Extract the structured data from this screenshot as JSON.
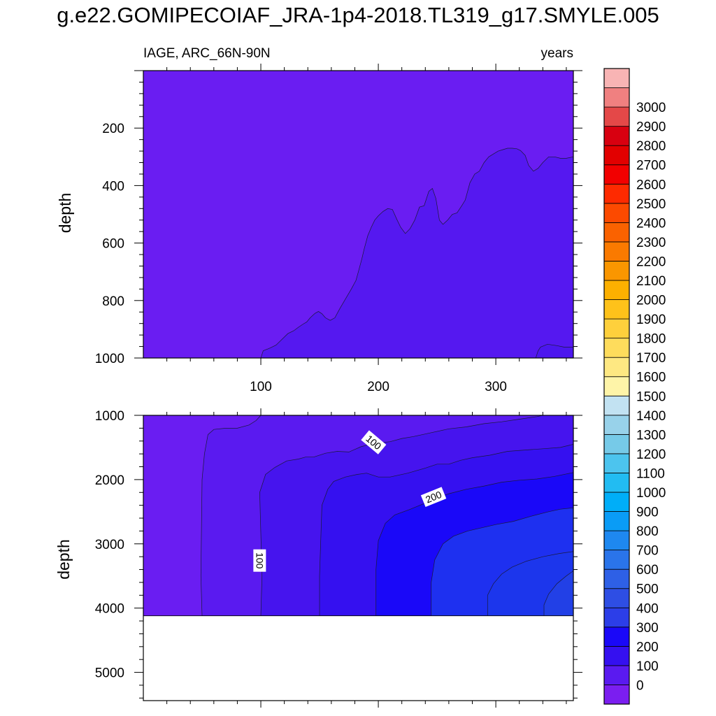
{
  "figure_title": "g.e22.GOMIPECOIAF_JRA-1p4-2018.TL319_g17.SMYLE.005",
  "chart_data": [
    {
      "type": "heatmap",
      "panel": "top",
      "title_left": "IAGE, ARC_66N-90N",
      "title_right": "years",
      "xlabel": "",
      "ylabel": "depth",
      "xlim": [
        0,
        366
      ],
      "ylim": [
        0,
        1000
      ],
      "y_reversed": true,
      "x_ticks": [
        100,
        200,
        300
      ],
      "y_ticks": [
        200,
        400,
        600,
        800,
        1000
      ],
      "contour_lines": [
        0,
        100
      ],
      "contour_labels": [],
      "bands": [
        {
          "level": "0-100",
          "color": "#6a1df2",
          "boundary": [
            [
              0,
              1000
            ],
            [
              0,
              0
            ],
            [
              366,
              0
            ],
            [
              366,
              1000
            ]
          ]
        },
        {
          "level": "100-200",
          "color": "#5518f0",
          "boundary": [
            [
              100,
              1000
            ],
            [
              102,
              975
            ],
            [
              108,
              965
            ],
            [
              113,
              955
            ],
            [
              118,
              935
            ],
            [
              123,
              915
            ],
            [
              128,
              905
            ],
            [
              132,
              893
            ],
            [
              136,
              882
            ],
            [
              139,
              875
            ],
            [
              142,
              860
            ],
            [
              146,
              845
            ],
            [
              149,
              838
            ],
            [
              152,
              846
            ],
            [
              155,
              860
            ],
            [
              159,
              869
            ],
            [
              163,
              860
            ],
            [
              167,
              830
            ],
            [
              172,
              795
            ],
            [
              177,
              760
            ],
            [
              181,
              730
            ],
            [
              183,
              700
            ],
            [
              186,
              655
            ],
            [
              188,
              620
            ],
            [
              191,
              575
            ],
            [
              194,
              545
            ],
            [
              197,
              520
            ],
            [
              200,
              505
            ],
            [
              204,
              490
            ],
            [
              208,
              480
            ],
            [
              212,
              483
            ],
            [
              216,
              520
            ],
            [
              219,
              545
            ],
            [
              223,
              567
            ],
            [
              227,
              550
            ],
            [
              231,
              520
            ],
            [
              235,
              475
            ],
            [
              239,
              470
            ],
            [
              243,
              420
            ],
            [
              246,
              410
            ],
            [
              249,
              445
            ],
            [
              252,
              520
            ],
            [
              255,
              535
            ],
            [
              259,
              520
            ],
            [
              263,
              500
            ],
            [
              267,
              495
            ],
            [
              271,
              470
            ],
            [
              274,
              450
            ],
            [
              278,
              390
            ],
            [
              282,
              360
            ],
            [
              286,
              350
            ],
            [
              290,
              320
            ],
            [
              294,
              300
            ],
            [
              298,
              290
            ],
            [
              302,
              280
            ],
            [
              306,
              275
            ],
            [
              310,
              270
            ],
            [
              314,
              270
            ],
            [
              318,
              272
            ],
            [
              321,
              278
            ],
            [
              325,
              295
            ],
            [
              328,
              330
            ],
            [
              332,
              350
            ],
            [
              336,
              340
            ],
            [
              340,
              320
            ],
            [
              345,
              300
            ],
            [
              350,
              300
            ],
            [
              355,
              305
            ],
            [
              360,
              305
            ],
            [
              366,
              300
            ],
            [
              366,
              1000
            ]
          ]
        },
        {
          "level": "100-200 (deep patch)",
          "color": "#4c16ee",
          "boundary": [
            [
              366,
              1000
            ],
            [
              366,
              962
            ],
            [
              358,
              962
            ],
            [
              352,
              957
            ],
            [
              344,
              952
            ],
            [
              338,
              962
            ],
            [
              336,
              975
            ],
            [
              334,
              1000
            ]
          ]
        }
      ]
    },
    {
      "type": "heatmap",
      "panel": "bottom",
      "title_left": "",
      "title_right": "",
      "xlabel": "",
      "ylabel": "depth",
      "xlim": [
        0,
        366
      ],
      "ylim": [
        1000,
        5440
      ],
      "y_reversed": true,
      "x_ticks": [],
      "y_ticks": [
        1000,
        2000,
        3000,
        4000,
        5000
      ],
      "data_bottom": 4120,
      "contour_lines": [
        0,
        100,
        200,
        300,
        400
      ],
      "contour_labels": [
        {
          "text": "100",
          "x": 196,
          "y": 1420
        },
        {
          "text": "200",
          "x": 247,
          "y": 2270
        },
        {
          "text": "100",
          "x": 99,
          "y": 3260
        }
      ],
      "bands": [
        {
          "level": "0-50",
          "color": "#6a1df2",
          "boundary": [
            [
              0,
              1000
            ],
            [
              366,
              1000
            ],
            [
              366,
              4120
            ],
            [
              0,
              4120
            ]
          ]
        },
        {
          "level": "50-100",
          "color": "#5a1af0",
          "boundary": [
            [
              50,
              4120
            ],
            [
              49,
              3500
            ],
            [
              50,
              2000
            ],
            [
              52,
              1600
            ],
            [
              55,
              1300
            ],
            [
              60,
              1220
            ],
            [
              70,
              1200
            ],
            [
              80,
              1200
            ],
            [
              90,
              1150
            ],
            [
              96,
              1080
            ],
            [
              100,
              1000
            ],
            [
              366,
              1000
            ],
            [
              366,
              4120
            ]
          ]
        },
        {
          "level": "100-150",
          "color": "#4614ee",
          "boundary": [
            [
              100,
              4120
            ],
            [
              101,
              3500
            ],
            [
              99,
              2200
            ],
            [
              104,
              1920
            ],
            [
              112,
              1810
            ],
            [
              122,
              1710
            ],
            [
              132,
              1680
            ],
            [
              138,
              1650
            ],
            [
              145,
              1650
            ],
            [
              155,
              1590
            ],
            [
              165,
              1560
            ],
            [
              175,
              1570
            ],
            [
              185,
              1490
            ],
            [
              195,
              1440
            ],
            [
              210,
              1410
            ],
            [
              220,
              1360
            ],
            [
              230,
              1330
            ],
            [
              245,
              1270
            ],
            [
              260,
              1210
            ],
            [
              275,
              1180
            ],
            [
              290,
              1130
            ],
            [
              305,
              1100
            ],
            [
              320,
              1060
            ],
            [
              335,
              1020
            ],
            [
              340,
              1000
            ],
            [
              366,
              1000
            ],
            [
              366,
              4120
            ]
          ]
        },
        {
          "level": "150-200",
          "color": "#3510f0",
          "boundary": [
            [
              150,
              4120
            ],
            [
              150,
              3500
            ],
            [
              152,
              2400
            ],
            [
              157,
              2150
            ],
            [
              162,
              2030
            ],
            [
              172,
              1960
            ],
            [
              182,
              1920
            ],
            [
              190,
              1900
            ],
            [
              200,
              1960
            ],
            [
              210,
              1960
            ],
            [
              225,
              1900
            ],
            [
              240,
              1820
            ],
            [
              250,
              1760
            ],
            [
              260,
              1760
            ],
            [
              270,
              1700
            ],
            [
              280,
              1660
            ],
            [
              295,
              1620
            ],
            [
              310,
              1560
            ],
            [
              325,
              1540
            ],
            [
              340,
              1520
            ],
            [
              355,
              1500
            ],
            [
              366,
              1450
            ],
            [
              366,
              4120
            ]
          ]
        },
        {
          "level": "200-250",
          "color": "#1a08f8",
          "boundary": [
            [
              198,
              4120
            ],
            [
              198,
              3400
            ],
            [
              200,
              2950
            ],
            [
              206,
              2680
            ],
            [
              214,
              2550
            ],
            [
              226,
              2470
            ],
            [
              238,
              2380
            ],
            [
              248,
              2300
            ],
            [
              260,
              2220
            ],
            [
              275,
              2150
            ],
            [
              290,
              2100
            ],
            [
              305,
              2040
            ],
            [
              320,
              2010
            ],
            [
              335,
              1990
            ],
            [
              350,
              1950
            ],
            [
              366,
              1890
            ],
            [
              366,
              4120
            ]
          ]
        },
        {
          "level": "250-300",
          "color": "#1e30f0",
          "boundary": [
            [
              245,
              4120
            ],
            [
              245,
              3600
            ],
            [
              248,
              3250
            ],
            [
              255,
              3000
            ],
            [
              264,
              2880
            ],
            [
              276,
              2800
            ],
            [
              288,
              2750
            ],
            [
              300,
              2700
            ],
            [
              315,
              2650
            ],
            [
              330,
              2570
            ],
            [
              345,
              2500
            ],
            [
              355,
              2460
            ],
            [
              366,
              2440
            ],
            [
              366,
              4120
            ]
          ]
        },
        {
          "level": "300-350",
          "color": "#1c36ec",
          "boundary": [
            [
              293,
              4120
            ],
            [
              293,
              3800
            ],
            [
              298,
              3620
            ],
            [
              305,
              3470
            ],
            [
              314,
              3360
            ],
            [
              326,
              3270
            ],
            [
              340,
              3200
            ],
            [
              354,
              3150
            ],
            [
              366,
              3120
            ],
            [
              366,
              4120
            ]
          ]
        },
        {
          "level": "350-400",
          "color": "#2240e6",
          "boundary": [
            [
              341,
              4120
            ],
            [
              341,
              3950
            ],
            [
              345,
              3780
            ],
            [
              352,
              3620
            ],
            [
              360,
              3500
            ],
            [
              366,
              3420
            ],
            [
              366,
              4120
            ]
          ]
        }
      ]
    },
    {
      "type": "colorbar",
      "levels": [
        0,
        100,
        200,
        300,
        400,
        500,
        600,
        700,
        800,
        900,
        1000,
        1100,
        1200,
        1300,
        1400,
        1500,
        1600,
        1700,
        1800,
        1900,
        2000,
        2100,
        2200,
        2300,
        2400,
        2500,
        2600,
        2700,
        2800,
        2900,
        3000
      ],
      "tick_labels": [
        "0",
        "100",
        "200",
        "300",
        "400",
        "500",
        "600",
        "700",
        "800",
        "900",
        "1000",
        "1100",
        "1200",
        "1300",
        "1400",
        "1500",
        "1600",
        "1700",
        "1800",
        "1900",
        "2000",
        "2100",
        "2200",
        "2300",
        "2400",
        "2500",
        "2600",
        "2700",
        "2800",
        "2900",
        "3000"
      ],
      "colors": [
        "#7b1ef0",
        "#5a1af0",
        "#3510f0",
        "#1a08f8",
        "#2c3ee8",
        "#2e4ee4",
        "#2e60e6",
        "#2a74ea",
        "#1e88f0",
        "#0a9cf6",
        "#00aef8",
        "#22bcf2",
        "#4cc4ee",
        "#76cae8",
        "#98d2ea",
        "#c2e2f2",
        "#fef4a8",
        "#fee882",
        "#fedc5c",
        "#fed03c",
        "#fec21a",
        "#fcb000",
        "#fa9600",
        "#fa7a00",
        "#fa6200",
        "#fc4a00",
        "#fe2a00",
        "#f20000",
        "#e20000",
        "#d80010",
        "#e44848",
        "#f08080",
        "#f8b4b4"
      ]
    }
  ]
}
